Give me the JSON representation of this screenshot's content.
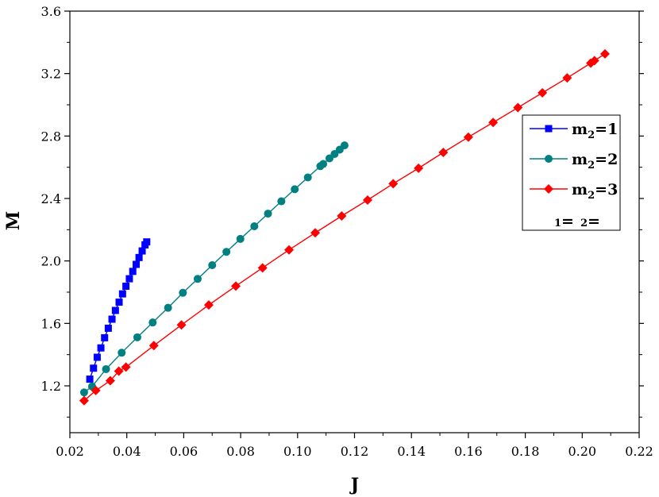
{
  "chart_data": {
    "type": "line",
    "xlabel": "J",
    "ylabel": "M",
    "xlim": [
      0.02,
      0.22
    ],
    "ylim": [
      0.9,
      3.6
    ],
    "xticks": [
      "0.02",
      "0.04",
      "0.06",
      "0.08",
      "0.10",
      "0.12",
      "0.14",
      "0.16",
      "0.18",
      "0.20",
      "0.22"
    ],
    "yticks": [
      "1.2",
      "1.6",
      "2.0",
      "2.4",
      "2.8",
      "3.2",
      "3.6"
    ],
    "legend_position": "right",
    "series": [
      {
        "name": "m2=1",
        "color": "#0000ff",
        "marker": "square",
        "points": [
          [
            0.027,
            1.243
          ],
          [
            0.0283,
            1.313
          ],
          [
            0.0296,
            1.383
          ],
          [
            0.0309,
            1.443
          ],
          [
            0.0322,
            1.508
          ],
          [
            0.0335,
            1.569
          ],
          [
            0.0348,
            1.627
          ],
          [
            0.036,
            1.683
          ],
          [
            0.0373,
            1.736
          ],
          [
            0.0385,
            1.789
          ],
          [
            0.0397,
            1.838
          ],
          [
            0.0409,
            1.886
          ],
          [
            0.0421,
            1.933
          ],
          [
            0.0433,
            1.978
          ],
          [
            0.0443,
            2.022
          ],
          [
            0.0454,
            2.064
          ],
          [
            0.0464,
            2.103
          ],
          [
            0.047,
            2.122
          ]
        ]
      },
      {
        "name": "m2=2",
        "color": "#008080",
        "marker": "circle",
        "points": [
          [
            0.025,
            1.158
          ],
          [
            0.0278,
            1.196
          ],
          [
            0.0327,
            1.307
          ],
          [
            0.0382,
            1.412
          ],
          [
            0.0437,
            1.511
          ],
          [
            0.0491,
            1.606
          ],
          [
            0.0545,
            1.7
          ],
          [
            0.0597,
            1.796
          ],
          [
            0.0649,
            1.885
          ],
          [
            0.07,
            1.973
          ],
          [
            0.075,
            2.058
          ],
          [
            0.0799,
            2.141
          ],
          [
            0.0848,
            2.222
          ],
          [
            0.0896,
            2.303
          ],
          [
            0.0943,
            2.382
          ],
          [
            0.099,
            2.459
          ],
          [
            0.1036,
            2.535
          ],
          [
            0.108,
            2.607
          ],
          [
            0.109,
            2.621
          ],
          [
            0.1112,
            2.657
          ],
          [
            0.113,
            2.685
          ],
          [
            0.1148,
            2.713
          ],
          [
            0.1165,
            2.74
          ]
        ]
      },
      {
        "name": "m2=3",
        "color": "#ff0000",
        "marker": "diamond",
        "points": [
          [
            0.025,
            1.105
          ],
          [
            0.0291,
            1.17
          ],
          [
            0.0342,
            1.233
          ],
          [
            0.0372,
            1.294
          ],
          [
            0.0397,
            1.32
          ],
          [
            0.0495,
            1.458
          ],
          [
            0.0592,
            1.59
          ],
          [
            0.0688,
            1.718
          ],
          [
            0.0783,
            1.839
          ],
          [
            0.0877,
            1.956
          ],
          [
            0.097,
            2.071
          ],
          [
            0.1062,
            2.18
          ],
          [
            0.1155,
            2.288
          ],
          [
            0.1246,
            2.39
          ],
          [
            0.1336,
            2.495
          ],
          [
            0.1425,
            2.594
          ],
          [
            0.1512,
            2.695
          ],
          [
            0.16,
            2.793
          ],
          [
            0.1687,
            2.887
          ],
          [
            0.1774,
            2.982
          ],
          [
            0.186,
            3.077
          ],
          [
            0.1947,
            3.172
          ],
          [
            0.203,
            3.267
          ],
          [
            0.2043,
            3.283
          ],
          [
            0.208,
            3.326
          ]
        ]
      }
    ],
    "legend": {
      "entries": [
        {
          "base": "m",
          "sub": "2",
          "rest": "=1"
        },
        {
          "base": "m",
          "sub": "2",
          "rest": "=2"
        },
        {
          "base": "m",
          "sub": "2",
          "rest": "=3"
        }
      ],
      "extra": {
        "sub1": "1",
        "eq1": "=",
        "sub2": "2",
        "eq2": "="
      }
    }
  }
}
